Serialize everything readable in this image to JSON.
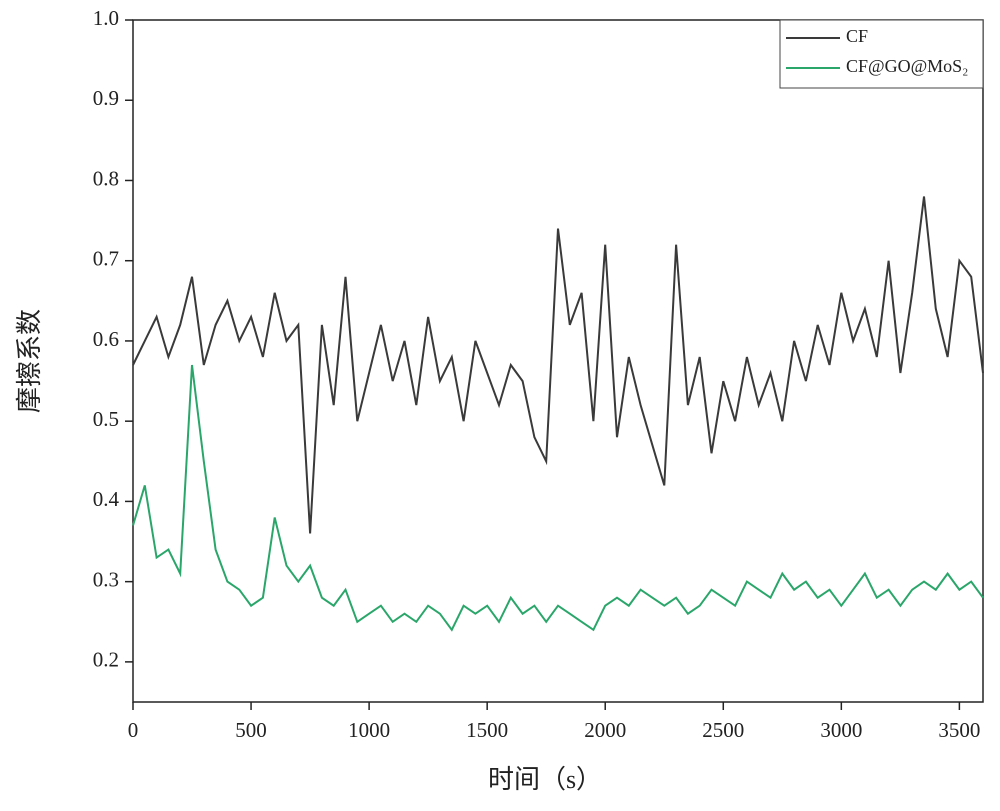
{
  "chart_data": {
    "type": "line",
    "xlabel": "时间（s）",
    "ylabel": "摩擦系数",
    "x": [
      0,
      50,
      100,
      150,
      200,
      250,
      300,
      350,
      400,
      450,
      500,
      550,
      600,
      650,
      700,
      750,
      800,
      850,
      900,
      950,
      1000,
      1050,
      1100,
      1150,
      1200,
      1250,
      1300,
      1350,
      1400,
      1450,
      1500,
      1550,
      1600,
      1650,
      1700,
      1750,
      1800,
      1850,
      1900,
      1950,
      2000,
      2050,
      2100,
      2150,
      2200,
      2250,
      2300,
      2350,
      2400,
      2450,
      2500,
      2550,
      2600,
      2650,
      2700,
      2750,
      2800,
      2850,
      2900,
      2950,
      3000,
      3050,
      3100,
      3150,
      3200,
      3250,
      3300,
      3350,
      3400,
      3450,
      3500,
      3550,
      3600
    ],
    "series": [
      {
        "name": "CF",
        "color": "#3a3a3a",
        "values": [
          0.57,
          0.6,
          0.63,
          0.58,
          0.62,
          0.68,
          0.57,
          0.62,
          0.65,
          0.6,
          0.63,
          0.58,
          0.66,
          0.6,
          0.62,
          0.36,
          0.62,
          0.52,
          0.68,
          0.5,
          0.56,
          0.62,
          0.55,
          0.6,
          0.52,
          0.63,
          0.55,
          0.58,
          0.5,
          0.6,
          0.56,
          0.52,
          0.57,
          0.55,
          0.48,
          0.45,
          0.74,
          0.62,
          0.66,
          0.5,
          0.72,
          0.48,
          0.58,
          0.52,
          0.47,
          0.42,
          0.72,
          0.52,
          0.58,
          0.46,
          0.55,
          0.5,
          0.58,
          0.52,
          0.56,
          0.5,
          0.6,
          0.55,
          0.62,
          0.57,
          0.66,
          0.6,
          0.64,
          0.58,
          0.7,
          0.56,
          0.66,
          0.78,
          0.64,
          0.58,
          0.7,
          0.68,
          0.56
        ]
      },
      {
        "name": "CF@GO@MoS₂",
        "color": "#2aa66a",
        "values": [
          0.37,
          0.42,
          0.33,
          0.34,
          0.31,
          0.57,
          0.45,
          0.34,
          0.3,
          0.29,
          0.27,
          0.28,
          0.38,
          0.32,
          0.3,
          0.32,
          0.28,
          0.27,
          0.29,
          0.25,
          0.26,
          0.27,
          0.25,
          0.26,
          0.25,
          0.27,
          0.26,
          0.24,
          0.27,
          0.26,
          0.27,
          0.25,
          0.28,
          0.26,
          0.27,
          0.25,
          0.27,
          0.26,
          0.25,
          0.24,
          0.27,
          0.28,
          0.27,
          0.29,
          0.28,
          0.27,
          0.28,
          0.26,
          0.27,
          0.29,
          0.28,
          0.27,
          0.3,
          0.29,
          0.28,
          0.31,
          0.29,
          0.3,
          0.28,
          0.29,
          0.27,
          0.29,
          0.31,
          0.28,
          0.29,
          0.27,
          0.29,
          0.3,
          0.29,
          0.31,
          0.29,
          0.3,
          0.28
        ]
      }
    ],
    "xlim": [
      0,
      3600
    ],
    "xticks": [
      0,
      500,
      1000,
      1500,
      2000,
      2500,
      3000,
      3500
    ],
    "ylim": [
      0.15,
      1.0
    ],
    "yticks": [
      0.2,
      0.3,
      0.4,
      0.5,
      0.6,
      0.7,
      0.8,
      0.9,
      {
        "value": 1,
        "label": "1.0"
      }
    ],
    "legend": "upper right"
  }
}
